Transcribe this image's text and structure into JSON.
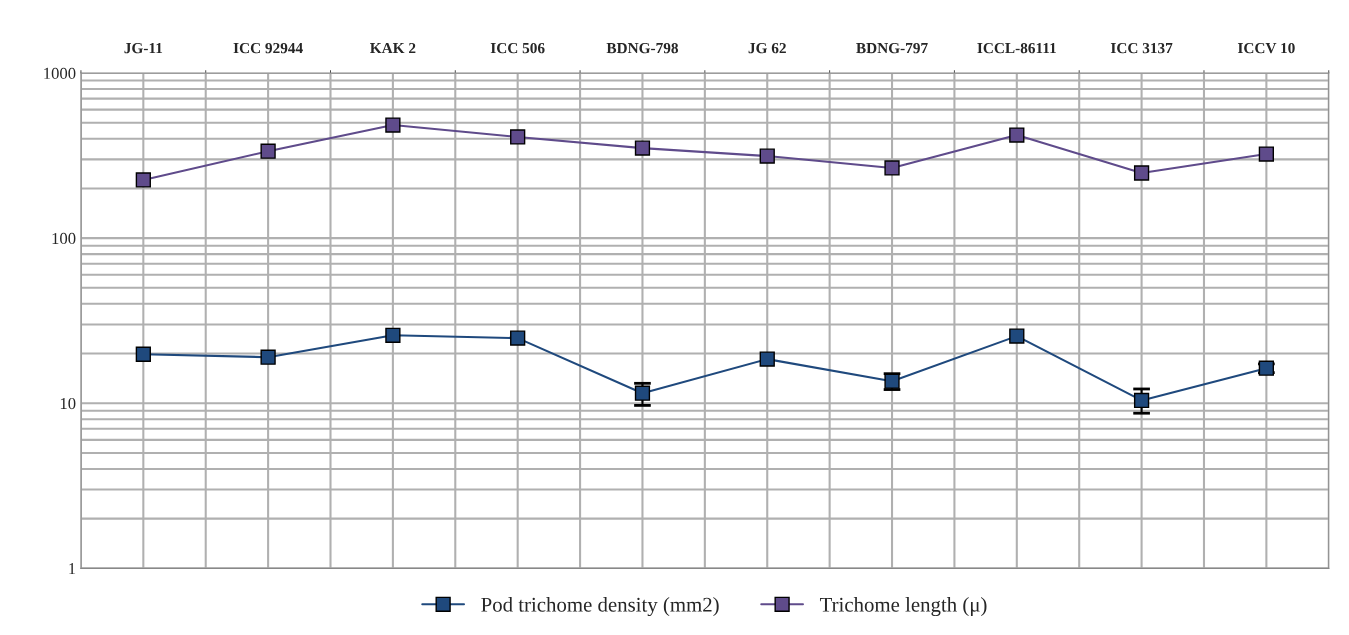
{
  "chart_data": {
    "type": "line",
    "categories": [
      "JG-11",
      "ICC 92944",
      "KAK 2",
      "ICC 506",
      "BDNG-798",
      "JG 62",
      "BDNG-797",
      "ICCL-86111",
      "ICC 3137",
      "ICCV 10"
    ],
    "series": [
      {
        "name": "Pod trichome density (mm2)",
        "color": "#1f497d",
        "values": [
          19.8,
          19.0,
          25.8,
          24.8,
          11.5,
          18.5,
          13.6,
          25.5,
          10.4,
          16.3
        ],
        "errors": [
          null,
          null,
          null,
          null,
          [
            9.7,
            13.2
          ],
          null,
          1.5,
          null,
          [
            8.7,
            12.2
          ],
          1
        ]
      },
      {
        "name": "Trichome length (μ)",
        "color": "#5f4b8b",
        "values": [
          225,
          336,
          484,
          410,
          351,
          314,
          266,
          421,
          248,
          323
        ]
      }
    ],
    "log": true,
    "ylim": [
      1,
      1000
    ],
    "yticks": [
      1,
      10,
      100,
      1000
    ],
    "grid": true,
    "legend": "bottom",
    "marker": "square",
    "line_style": "solid"
  }
}
